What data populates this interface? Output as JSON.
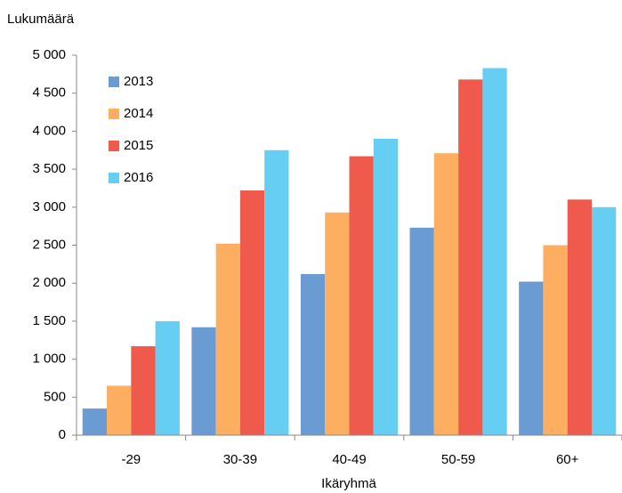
{
  "chart_data": {
    "type": "bar",
    "y_label": "Lukumäärä",
    "x_label": "Ikäryhmä",
    "categories": [
      "-29",
      "30-39",
      "40-49",
      "50-59",
      "60+"
    ],
    "series": [
      {
        "name": "2013",
        "color": "#6a9bd3",
        "values": [
          350,
          1420,
          2120,
          2730,
          2020
        ]
      },
      {
        "name": "2014",
        "color": "#fdae61",
        "values": [
          650,
          2520,
          2930,
          3710,
          2500
        ]
      },
      {
        "name": "2015",
        "color": "#ef5a4c",
        "values": [
          1170,
          3220,
          3670,
          4680,
          3100
        ]
      },
      {
        "name": "2016",
        "color": "#66cdf3",
        "values": [
          1500,
          3750,
          3900,
          4830,
          3000
        ]
      }
    ],
    "ylim": [
      0,
      5000
    ],
    "yticks": [
      0,
      500,
      {
        "value": 1000,
        "label": "1 000"
      },
      {
        "value": 1500,
        "label": "1 500"
      },
      {
        "value": 2000,
        "label": "2 000"
      },
      {
        "value": 2500,
        "label": "2 500"
      },
      {
        "value": 3000,
        "label": "3 000"
      },
      {
        "value": 3500,
        "label": "3 500"
      },
      {
        "value": 4000,
        "label": "4 000"
      },
      {
        "value": 4500,
        "label": "4 500"
      },
      {
        "value": 5000,
        "label": "5 000"
      }
    ],
    "legend": "upper left",
    "grid": false
  }
}
